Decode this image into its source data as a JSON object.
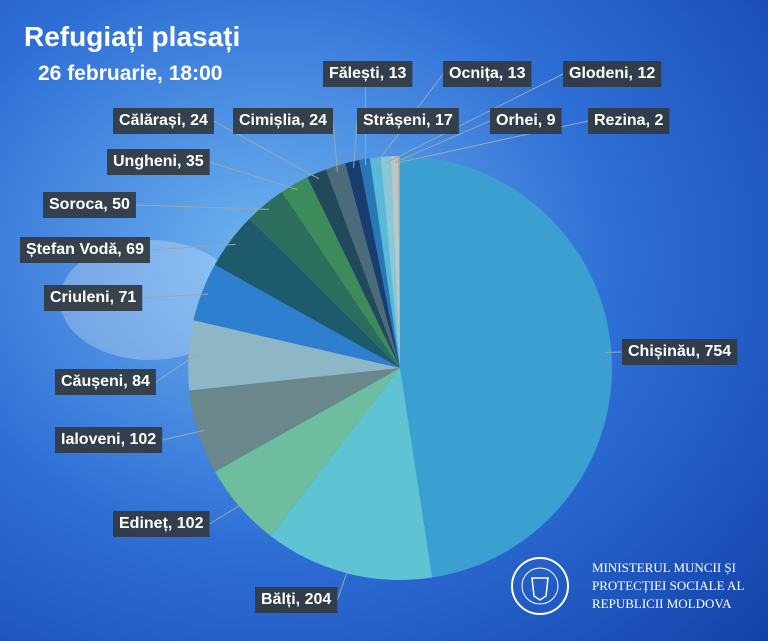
{
  "chart_data": {
    "type": "pie",
    "title": "Refugiați plasați",
    "subtitle": "26 februarie, 18:00",
    "values": [
      754,
      204,
      102,
      102,
      84,
      71,
      69,
      50,
      35,
      24,
      24,
      17,
      13,
      13,
      12,
      9,
      2
    ],
    "value_labels": [
      "Chișinău, 754",
      "Bălți, 204",
      "Edineț, 102",
      "Ialoveni, 102",
      "Căușeni, 84",
      "Criuleni, 71",
      "Ștefan Vodă, 69",
      "Soroca, 50",
      "Ungheni, 35",
      "Călărași, 24",
      "Cimișlia, 24",
      "Strășeni, 17",
      "Fălești, 13",
      "Ocnița, 13",
      "Glodeni, 12",
      "Orhei, 9",
      "Rezina, 2"
    ],
    "colors": [
      "#3b9fd2",
      "#5ec4d4",
      "#6dbd9e",
      "#6a878c",
      "#8db6c6",
      "#2f7fd0",
      "#1d5a6c",
      "#2c6e5e",
      "#3d8a5a",
      "#22495a",
      "#4b6b7a",
      "#1a3d70",
      "#2a77b8",
      "#5ab8d8",
      "#8ac8d8",
      "#b9c8c8",
      "#d09a70"
    ]
  },
  "ministry": [
    "MINISTERUL MUNCII ȘI",
    "PROTECȚIEI SOCIALE AL",
    "REPUBLICII MOLDOVA"
  ]
}
